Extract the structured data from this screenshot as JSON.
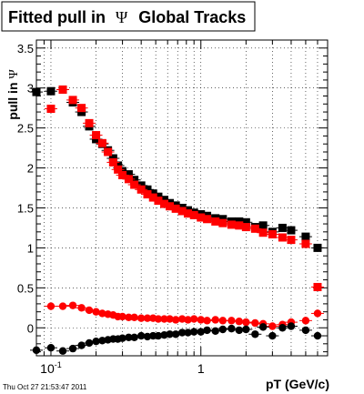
{
  "chart_data": {
    "type": "scatter",
    "title_text": "Fitted pull in ",
    "title_symbol": "Ψ",
    "title_suffix": "Global Tracks",
    "ylabel_text": "pull in ",
    "ylabel_symbol": "Ψ",
    "xlabel": "pT (GeV/c)",
    "xscale": "log",
    "xlim": [
      0.08,
      7.0
    ],
    "ylim": [
      -0.35,
      3.6
    ],
    "grid": true,
    "timestamp": "Thu Oct 27 21:53:47 2011",
    "x_major_ticks": [
      {
        "value": 0.1,
        "base": "10",
        "exp": "-1"
      },
      {
        "value": 1.0,
        "base": "1",
        "exp": ""
      }
    ],
    "y_ticks": [
      {
        "value": 0,
        "label": "0"
      },
      {
        "value": 0.5,
        "label": "0.5"
      },
      {
        "value": 1,
        "label": "1"
      },
      {
        "value": 1.5,
        "label": "1.5"
      },
      {
        "value": 2,
        "label": "2"
      },
      {
        "value": 2.5,
        "label": "2.5"
      },
      {
        "value": 3,
        "label": "3"
      },
      {
        "value": 3.5,
        "label": "3.5"
      }
    ],
    "colors": {
      "black_series": "#000000",
      "red_series": "#ff0000"
    },
    "series": [
      {
        "marker": "square",
        "color": "#000000",
        "x": [
          0.08,
          0.1,
          0.12,
          0.14,
          0.16,
          0.18,
          0.2,
          0.22,
          0.24,
          0.26,
          0.28,
          0.3,
          0.33,
          0.36,
          0.4,
          0.44,
          0.48,
          0.52,
          0.57,
          0.62,
          0.68,
          0.75,
          0.82,
          0.9,
          1.0,
          1.1,
          1.25,
          1.4,
          1.6,
          1.8,
          2.0,
          2.3,
          2.6,
          3.0,
          3.5,
          4.0,
          5.0,
          6.0
        ],
        "y": [
          2.95,
          2.96,
          2.98,
          2.82,
          2.7,
          2.52,
          2.36,
          2.3,
          2.22,
          2.12,
          2.03,
          1.96,
          1.92,
          1.85,
          1.78,
          1.73,
          1.68,
          1.64,
          1.6,
          1.56,
          1.53,
          1.5,
          1.47,
          1.44,
          1.42,
          1.4,
          1.37,
          1.36,
          1.33,
          1.33,
          1.32,
          1.26,
          1.28,
          1.2,
          1.25,
          1.22,
          1.14,
          1.0
        ]
      },
      {
        "marker": "square",
        "color": "#ff0000",
        "x": [
          0.1,
          0.12,
          0.14,
          0.16,
          0.18,
          0.2,
          0.22,
          0.24,
          0.26,
          0.28,
          0.3,
          0.33,
          0.36,
          0.4,
          0.44,
          0.48,
          0.52,
          0.57,
          0.62,
          0.68,
          0.75,
          0.82,
          0.9,
          1.0,
          1.1,
          1.25,
          1.4,
          1.6,
          1.8,
          2.0,
          2.3,
          2.6,
          3.0,
          3.5,
          4.0,
          5.0,
          6.0
        ],
        "y": [
          2.74,
          2.98,
          2.85,
          2.75,
          2.56,
          2.41,
          2.31,
          2.2,
          2.07,
          1.98,
          1.91,
          1.86,
          1.79,
          1.73,
          1.67,
          1.63,
          1.59,
          1.55,
          1.52,
          1.49,
          1.46,
          1.43,
          1.41,
          1.38,
          1.36,
          1.33,
          1.31,
          1.29,
          1.28,
          1.26,
          1.24,
          1.19,
          1.17,
          1.13,
          1.1,
          1.05,
          0.51
        ]
      },
      {
        "marker": "circle",
        "color": "#ff0000",
        "x": [
          0.1,
          0.12,
          0.14,
          0.16,
          0.18,
          0.2,
          0.22,
          0.24,
          0.26,
          0.28,
          0.3,
          0.33,
          0.36,
          0.4,
          0.44,
          0.48,
          0.52,
          0.57,
          0.62,
          0.68,
          0.75,
          0.82,
          0.9,
          1.0,
          1.1,
          1.25,
          1.4,
          1.6,
          1.8,
          2.0,
          2.3,
          2.6,
          3.0,
          3.5,
          4.0,
          5.0,
          6.0
        ],
        "y": [
          0.27,
          0.27,
          0.28,
          0.25,
          0.22,
          0.2,
          0.18,
          0.17,
          0.16,
          0.14,
          0.14,
          0.13,
          0.13,
          0.12,
          0.12,
          0.12,
          0.11,
          0.11,
          0.11,
          0.1,
          0.11,
          0.1,
          0.11,
          0.1,
          0.09,
          0.1,
          0.09,
          0.09,
          0.08,
          0.07,
          0.06,
          0.05,
          0.02,
          0.04,
          0.07,
          0.09,
          0.18
        ]
      },
      {
        "marker": "circle",
        "color": "#000000",
        "x": [
          0.08,
          0.1,
          0.12,
          0.14,
          0.16,
          0.18,
          0.2,
          0.22,
          0.24,
          0.26,
          0.28,
          0.3,
          0.33,
          0.36,
          0.4,
          0.44,
          0.48,
          0.52,
          0.57,
          0.62,
          0.68,
          0.75,
          0.82,
          0.9,
          1.0,
          1.1,
          1.25,
          1.4,
          1.6,
          1.8,
          2.0,
          2.3,
          2.6,
          3.0,
          3.5,
          4.0,
          5.0,
          6.0
        ],
        "y": [
          -0.28,
          -0.25,
          -0.29,
          -0.26,
          -0.22,
          -0.19,
          -0.17,
          -0.16,
          -0.15,
          -0.14,
          -0.14,
          -0.13,
          -0.12,
          -0.12,
          -0.1,
          -0.11,
          -0.1,
          -0.1,
          -0.09,
          -0.08,
          -0.08,
          -0.06,
          -0.06,
          -0.05,
          -0.05,
          -0.03,
          -0.04,
          -0.02,
          -0.01,
          -0.03,
          -0.02,
          -0.08,
          0.01,
          -0.1,
          0.0,
          0.02,
          -0.03,
          -0.1
        ]
      }
    ]
  }
}
